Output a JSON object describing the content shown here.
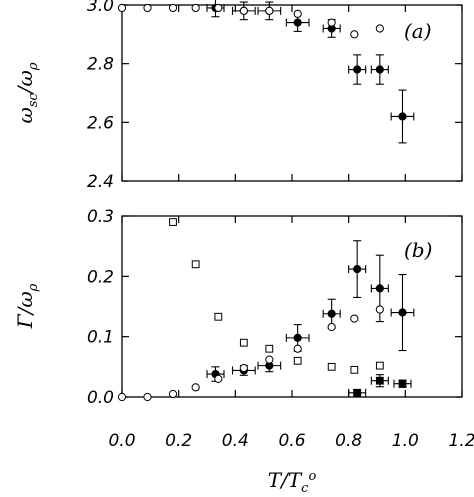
{
  "chart_data": [
    {
      "type": "scatter",
      "panel_label": "(a)",
      "ylabel": "ω_sc/ω_ρ",
      "xlim": [
        0.0,
        1.2
      ],
      "ylim": [
        2.4,
        3.0
      ],
      "y_ticks": [
        "2.4",
        "2.6",
        "2.8",
        "3.0"
      ],
      "y_tick_values": [
        2.4,
        2.6,
        2.8,
        3.0
      ],
      "grid": false,
      "series": [
        {
          "marker": "filled-circle-errorbars",
          "points": [
            {
              "x": 0.33,
              "y": 2.99,
              "xerr": 0.03,
              "yerr": 0.03
            },
            {
              "x": 0.43,
              "y": 2.98,
              "xerr": 0.04,
              "yerr": 0.03
            },
            {
              "x": 0.52,
              "y": 2.98,
              "xerr": 0.04,
              "yerr": 0.03
            },
            {
              "x": 0.62,
              "y": 2.94,
              "xerr": 0.04,
              "yerr": 0.03
            },
            {
              "x": 0.74,
              "y": 2.92,
              "xerr": 0.03,
              "yerr": 0.03
            },
            {
              "x": 0.83,
              "y": 2.78,
              "xerr": 0.03,
              "yerr": 0.05
            },
            {
              "x": 0.91,
              "y": 2.78,
              "xerr": 0.03,
              "yerr": 0.05
            },
            {
              "x": 0.99,
              "y": 2.62,
              "xerr": 0.04,
              "yerr": 0.09
            }
          ]
        },
        {
          "marker": "open-circle",
          "points": [
            {
              "x": 0.0,
              "y": 2.99
            },
            {
              "x": 0.09,
              "y": 2.99
            },
            {
              "x": 0.18,
              "y": 2.99
            },
            {
              "x": 0.26,
              "y": 2.99
            },
            {
              "x": 0.34,
              "y": 2.99
            },
            {
              "x": 0.43,
              "y": 2.98
            },
            {
              "x": 0.52,
              "y": 2.98
            },
            {
              "x": 0.62,
              "y": 2.97
            },
            {
              "x": 0.74,
              "y": 2.94
            },
            {
              "x": 0.82,
              "y": 2.9
            },
            {
              "x": 0.91,
              "y": 2.92
            }
          ]
        }
      ]
    },
    {
      "type": "scatter",
      "panel_label": "(b)",
      "ylabel": "Γ/ω_ρ",
      "xlabel": "T/T_c°",
      "xlim": [
        0.0,
        1.2
      ],
      "ylim": [
        0.0,
        0.3
      ],
      "x_ticks": [
        "0.0",
        "0.2",
        "0.4",
        "0.6",
        "0.8",
        "1.0",
        "1.2"
      ],
      "x_tick_values": [
        0.0,
        0.2,
        0.4,
        0.6,
        0.8,
        1.0,
        1.2
      ],
      "y_ticks": [
        "0.0",
        "0.1",
        "0.2",
        "0.3"
      ],
      "y_tick_values": [
        0.0,
        0.1,
        0.2,
        0.3
      ],
      "grid": false,
      "series": [
        {
          "marker": "filled-circle-errorbars",
          "points": [
            {
              "x": 0.33,
              "y": 0.038,
              "xerr": 0.03,
              "yerr": 0.012
            },
            {
              "x": 0.43,
              "y": 0.044,
              "xerr": 0.04,
              "yerr": 0.008
            },
            {
              "x": 0.52,
              "y": 0.052,
              "xerr": 0.04,
              "yerr": 0.01
            },
            {
              "x": 0.62,
              "y": 0.098,
              "xerr": 0.04,
              "yerr": 0.022
            },
            {
              "x": 0.74,
              "y": 0.138,
              "xerr": 0.03,
              "yerr": 0.024
            },
            {
              "x": 0.83,
              "y": 0.212,
              "xerr": 0.03,
              "yerr": 0.047
            },
            {
              "x": 0.91,
              "y": 0.18,
              "xerr": 0.03,
              "yerr": 0.055
            },
            {
              "x": 0.99,
              "y": 0.14,
              "xerr": 0.04,
              "yerr": 0.063
            }
          ]
        },
        {
          "marker": "filled-square-errorbars",
          "points": [
            {
              "x": 0.83,
              "y": 0.007,
              "xerr": 0.03,
              "yerr": 0.004
            },
            {
              "x": 0.91,
              "y": 0.027,
              "xerr": 0.03,
              "yerr": 0.01
            },
            {
              "x": 0.99,
              "y": 0.022,
              "xerr": 0.03,
              "yerr": 0.006
            }
          ]
        },
        {
          "marker": "open-circle",
          "points": [
            {
              "x": 0.0,
              "y": 0.0
            },
            {
              "x": 0.09,
              "y": 0.0
            },
            {
              "x": 0.18,
              "y": 0.005
            },
            {
              "x": 0.26,
              "y": 0.016
            },
            {
              "x": 0.34,
              "y": 0.03
            },
            {
              "x": 0.43,
              "y": 0.048
            },
            {
              "x": 0.52,
              "y": 0.062
            },
            {
              "x": 0.62,
              "y": 0.08
            },
            {
              "x": 0.74,
              "y": 0.116
            },
            {
              "x": 0.82,
              "y": 0.13
            },
            {
              "x": 0.91,
              "y": 0.145
            }
          ]
        },
        {
          "marker": "open-square",
          "points": [
            {
              "x": 0.18,
              "y": 0.29
            },
            {
              "x": 0.26,
              "y": 0.22
            },
            {
              "x": 0.34,
              "y": 0.133
            },
            {
              "x": 0.43,
              "y": 0.09
            },
            {
              "x": 0.52,
              "y": 0.08
            },
            {
              "x": 0.62,
              "y": 0.06
            },
            {
              "x": 0.74,
              "y": 0.05
            },
            {
              "x": 0.82,
              "y": 0.045
            },
            {
              "x": 0.91,
              "y": 0.052
            }
          ]
        }
      ]
    }
  ]
}
